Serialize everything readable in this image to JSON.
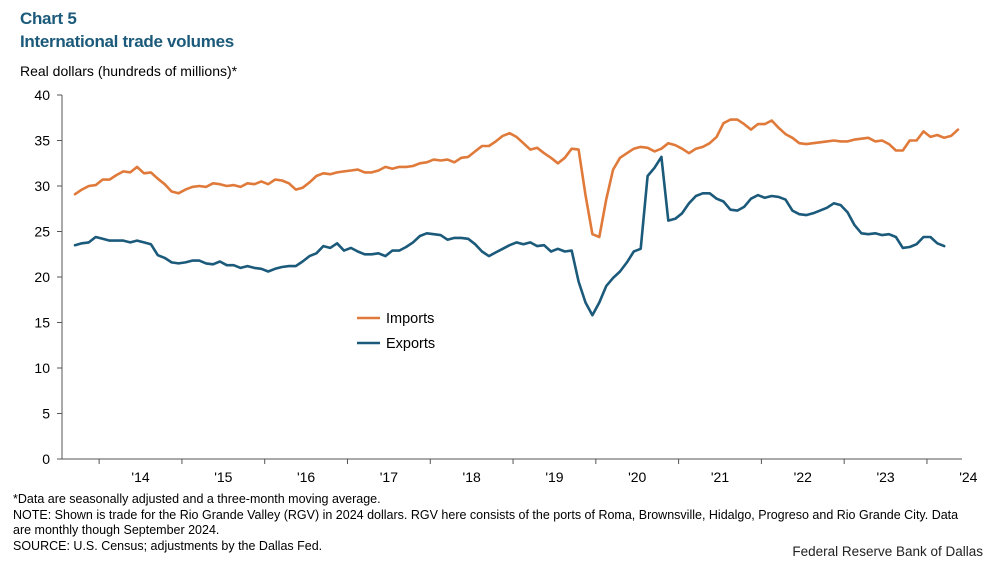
{
  "header": {
    "chart_number": "Chart 5",
    "title": "International trade volumes",
    "ylabel": "Real dollars (hundreds of millions)*"
  },
  "footer": {
    "note1": "*Data are seasonally adjusted and a three-month moving average.",
    "note2": "NOTE: Shown is trade for the Rio Grande Valley (RGV) in 2024 dollars. RGV here consists of the ports of Roma, Brownsville, Hidalgo, Progreso and Rio Grande City. Data are monthly though September 2024.",
    "source": "SOURCE: U.S. Census; adjustments by the Dallas Fed.",
    "credit": "Federal Reserve Bank of Dallas"
  },
  "colors": {
    "imports": "#e07a3a",
    "exports": "#1b5a7a",
    "axis": "#555555"
  },
  "chart_data": {
    "type": "line",
    "title": "International trade volumes",
    "ylabel": "Real dollars (hundreds of millions)*",
    "ylim": [
      0,
      40
    ],
    "yticks": [
      0,
      5,
      10,
      15,
      20,
      25,
      30,
      35,
      40
    ],
    "xlabels": [
      "'14",
      "'15",
      "'16",
      "'17",
      "'18",
      "'19",
      "'20",
      "'21",
      "'22",
      "'23",
      "'24"
    ],
    "x_start": "2013-09",
    "x_end": "2024-09",
    "legend_position": "center-left",
    "series": [
      {
        "name": "Imports",
        "values": [
          29.1,
          29.6,
          30.0,
          30.1,
          30.7,
          30.7,
          31.2,
          31.6,
          31.5,
          32.1,
          31.4,
          31.5,
          30.8,
          30.2,
          29.4,
          29.2,
          29.6,
          29.9,
          30.0,
          29.9,
          30.3,
          30.2,
          30.0,
          30.1,
          29.9,
          30.3,
          30.2,
          30.5,
          30.2,
          30.7,
          30.6,
          30.3,
          29.6,
          29.8,
          30.4,
          31.1,
          31.4,
          31.3,
          31.5,
          31.6,
          31.7,
          31.8,
          31.5,
          31.5,
          31.7,
          32.1,
          31.9,
          32.1,
          32.1,
          32.2,
          32.5,
          32.6,
          32.9,
          32.8,
          32.9,
          32.6,
          33.1,
          33.2,
          33.8,
          34.4,
          34.4,
          34.9,
          35.5,
          35.8,
          35.4,
          34.7,
          34.0,
          34.2,
          33.6,
          33.1,
          32.5,
          33.1,
          34.1,
          34.0,
          29.0,
          24.7,
          24.4,
          28.5,
          31.8,
          33.1,
          33.6,
          34.1,
          34.3,
          34.2,
          33.8,
          34.1,
          34.7,
          34.5,
          34.1,
          33.6,
          34.1,
          34.3,
          34.7,
          35.4,
          36.9,
          37.3,
          37.3,
          36.8,
          36.2,
          36.8,
          36.8,
          37.2,
          36.4,
          35.7,
          35.3,
          34.7,
          34.6,
          34.7,
          34.8,
          34.9,
          35.0,
          34.9,
          34.9,
          35.1,
          35.2,
          35.3,
          34.9,
          35.0,
          34.6,
          33.9,
          33.9,
          35.0,
          35.0,
          36.0,
          35.4,
          35.6,
          35.3,
          35.5,
          36.2
        ]
      },
      {
        "name": "Exports",
        "values": [
          23.5,
          23.7,
          23.8,
          24.4,
          24.2,
          24.0,
          24.0,
          24.0,
          23.8,
          24.0,
          23.8,
          23.6,
          22.4,
          22.1,
          21.6,
          21.5,
          21.6,
          21.8,
          21.8,
          21.5,
          21.4,
          21.7,
          21.3,
          21.3,
          21.0,
          21.2,
          21.0,
          20.9,
          20.6,
          20.9,
          21.1,
          21.2,
          21.2,
          21.7,
          22.3,
          22.6,
          23.4,
          23.2,
          23.7,
          22.9,
          23.2,
          22.8,
          22.5,
          22.5,
          22.6,
          22.3,
          22.9,
          22.9,
          23.3,
          23.8,
          24.5,
          24.8,
          24.7,
          24.6,
          24.1,
          24.3,
          24.3,
          24.2,
          23.6,
          22.8,
          22.3,
          22.7,
          23.1,
          23.5,
          23.8,
          23.6,
          23.8,
          23.4,
          23.5,
          22.8,
          23.1,
          22.8,
          22.9,
          19.5,
          17.2,
          15.8,
          17.2,
          19.0,
          19.9,
          20.6,
          21.6,
          22.8,
          23.1,
          31.1,
          32.0,
          33.2,
          26.2,
          26.4,
          27.0,
          28.1,
          28.9,
          29.2,
          29.2,
          28.6,
          28.3,
          27.4,
          27.3,
          27.7,
          28.6,
          29.0,
          28.7,
          28.9,
          28.8,
          28.5,
          27.3,
          26.9,
          26.8,
          27.0,
          27.3,
          27.6,
          28.1,
          27.9,
          27.1,
          25.7,
          24.8,
          24.7,
          24.8,
          24.6,
          24.7,
          24.4,
          23.2,
          23.3,
          23.6,
          24.4,
          24.4,
          23.7,
          23.4
        ]
      }
    ]
  }
}
